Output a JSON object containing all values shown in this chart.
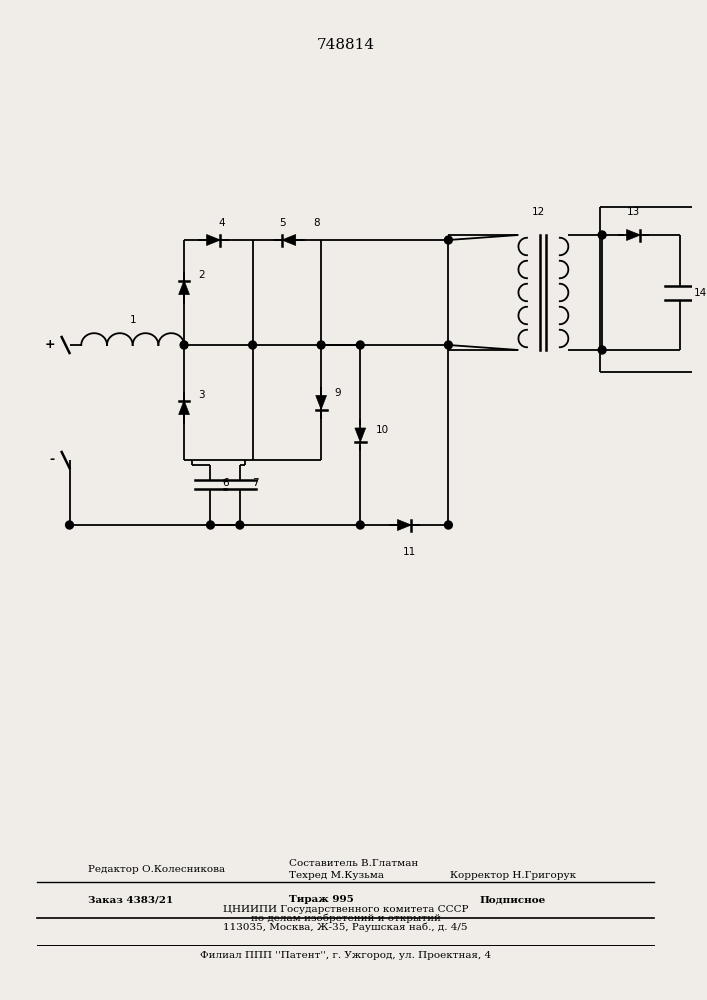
{
  "title": "748814",
  "bg_color": "#f0ede8",
  "line_color": "black",
  "line_width": 1.3,
  "font_size": 7.5,
  "footer": {
    "line1a": "Редактор О.Колесникова",
    "line1b": "Составитель В.Глатман",
    "line1c": "Техред М.Кузьма",
    "line1d": "Корректор Н.Григорук",
    "line2a": "Заказ 4383/21",
    "line2b": "Тираж 995",
    "line2c": "Подписное",
    "line3": "ЦНИИПИ Государственного комитета СССР",
    "line4": "по делам изобретений и открытий",
    "line5": "113035, Москва, Ж-35, Раушская наб., д. 4/5",
    "line6": "Филиал ППП ''Патент'', г. Ужгород, ул. Проектная, 4"
  }
}
